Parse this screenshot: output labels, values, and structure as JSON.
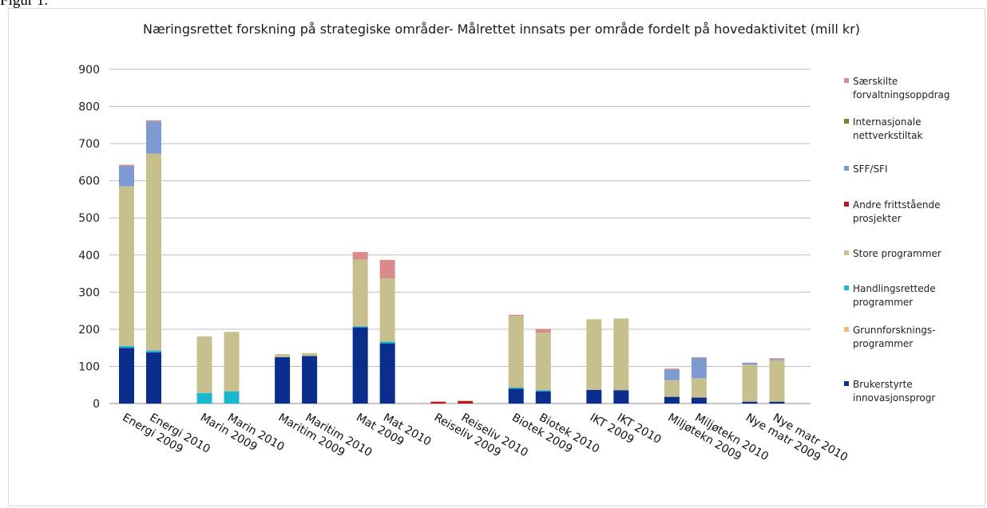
{
  "figure_label": "Figur 1.",
  "chart_data": {
    "type": "bar",
    "stacked": true,
    "title": "Næringsrettet forskning på strategiske områder- Målrettet innsats per område fordelt på hovedaktivitet (mill kr)",
    "ylim": [
      0,
      900
    ],
    "yticks": [
      0,
      100,
      200,
      300,
      400,
      500,
      600,
      700,
      800,
      900
    ],
    "grid": true,
    "legend_position": "right",
    "categories": [
      "Energi 2009",
      "Energi 2010",
      "Marin 2009",
      "Marin 2010",
      "Maritim 2009",
      "Maritim 2010",
      "Mat 2009",
      "Mat 2010",
      "Reiseliv 2009",
      "Reiseliv 2010",
      "Biotek 2009",
      "Biotek 2010",
      "IKT 2009",
      "IKT 2010",
      "Miljøtekn 2009",
      "Miljøtekn 2010",
      "Nye matr 2009",
      "Nye matr 2010"
    ],
    "series": [
      {
        "name": "Brukerstyrte innovasjonsprogr",
        "color": "#0b2d8c",
        "values": [
          150,
          138,
          0,
          0,
          125,
          128,
          205,
          162,
          0,
          0,
          40,
          33,
          37,
          36,
          18,
          16,
          5,
          5
        ]
      },
      {
        "name": "Grunnforsknings-programmer",
        "color": "#f5b87a",
        "values": [
          0,
          0,
          0,
          0,
          0,
          0,
          0,
          0,
          0,
          0,
          0,
          0,
          0,
          0,
          0,
          0,
          0,
          0
        ]
      },
      {
        "name": "Handlingsrettede programmer",
        "color": "#1ab8d0",
        "values": [
          5,
          5,
          28,
          33,
          0,
          0,
          3,
          5,
          0,
          0,
          3,
          3,
          0,
          0,
          0,
          0,
          0,
          0
        ]
      },
      {
        "name": "Store programmer",
        "color": "#c8bf8e",
        "values": [
          430,
          530,
          153,
          160,
          8,
          8,
          180,
          170,
          0,
          0,
          193,
          155,
          190,
          193,
          45,
          52,
          100,
          112
        ]
      },
      {
        "name": "Andre frittstående prosjekter",
        "color": "#c0181c",
        "values": [
          0,
          0,
          0,
          0,
          0,
          0,
          0,
          0,
          5,
          7,
          0,
          0,
          0,
          0,
          0,
          0,
          0,
          0
        ]
      },
      {
        "name": "SFF/SFI",
        "color": "#7e9ad0",
        "values": [
          55,
          87,
          0,
          0,
          0,
          0,
          0,
          0,
          0,
          0,
          0,
          0,
          0,
          0,
          28,
          55,
          5,
          3
        ]
      },
      {
        "name": "Internasjonale nettverkstiltak",
        "color": "#6f8c2a",
        "values": [
          0,
          0,
          0,
          0,
          0,
          0,
          0,
          0,
          0,
          0,
          0,
          0,
          0,
          0,
          0,
          0,
          0,
          0
        ]
      },
      {
        "name": "Særskilte forvaltningsoppdrag",
        "color": "#d98b8b",
        "values": [
          3,
          3,
          0,
          0,
          0,
          0,
          20,
          50,
          0,
          0,
          3,
          10,
          0,
          0,
          3,
          2,
          0,
          2
        ]
      }
    ],
    "legend_order": [
      {
        "lines": [
          "Særskilte",
          "forvaltningsoppdrag"
        ],
        "color": "#d98b8b"
      },
      {
        "lines": [
          "Internasjonale",
          "nettverkstiltak"
        ],
        "color": "#6f8c2a"
      },
      {
        "lines": [
          "SFF/SFI"
        ],
        "color": "#7e9ad0"
      },
      {
        "lines": [
          "Andre frittstående",
          "prosjekter"
        ],
        "color": "#c0181c"
      },
      {
        "lines": [
          "Store programmer"
        ],
        "color": "#c8bf8e"
      },
      {
        "lines": [
          "Handlingsrettede",
          "programmer"
        ],
        "color": "#1ab8d0"
      },
      {
        "lines": [
          "Grunnforsknings-",
          "programmer"
        ],
        "color": "#f5b87a"
      },
      {
        "lines": [
          "Brukerstyrte",
          "innovasjonsprogr"
        ],
        "color": "#0b2d8c"
      }
    ]
  }
}
